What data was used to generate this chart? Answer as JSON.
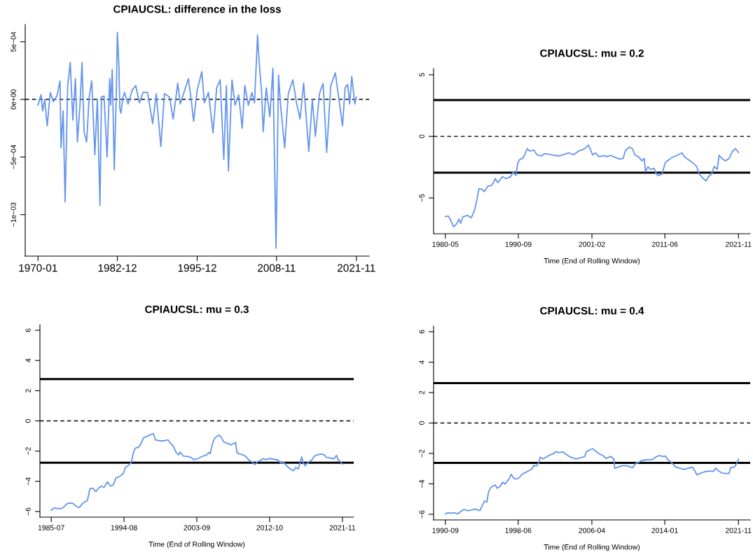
{
  "chart_data": [
    {
      "type": "line",
      "title": "CPIAUCSL: difference in the loss",
      "x": [
        "1970-01",
        "1970-07",
        "1970-10",
        "1971-02",
        "1971-07",
        "1972-01",
        "1972-07",
        "1973-02",
        "1973-08",
        "1973-10",
        "1974-02",
        "1974-06",
        "1974-11",
        "1975-04",
        "1975-09",
        "1976-02",
        "1976-06",
        "1976-11",
        "1977-03",
        "1977-07",
        "1977-12",
        "1978-05",
        "1978-10",
        "1979-04",
        "1979-09",
        "1980-02",
        "1980-05",
        "1980-10",
        "1981-04",
        "1981-09",
        "1981-11",
        "1982-02",
        "1982-06",
        "1982-10",
        "1982-12",
        "1983-03",
        "1983-05",
        "1983-07",
        "1983-11",
        "1984-02",
        "1984-09",
        "1985-05",
        "1985-12",
        "1986-07",
        "1987-02",
        "1987-11",
        "1988-09",
        "1989-04",
        "1990-01",
        "1990-08",
        "1991-06",
        "1992-01",
        "1992-10",
        "1993-03",
        "1993-10",
        "1994-07",
        "1995-01",
        "1995-05",
        "1995-12",
        "1996-09",
        "1997-02",
        "1997-10",
        "1998-07",
        "1999-02",
        "1999-09",
        "2000-04",
        "2000-09",
        "2001-01",
        "2001-08",
        "2002-02",
        "2002-09",
        "2003-04",
        "2003-09",
        "2004-04",
        "2004-11",
        "2005-04",
        "2005-10",
        "2006-01",
        "2006-06",
        "2006-09",
        "2007-03",
        "2007-10",
        "2008-04",
        "2008-10",
        "2009-03",
        "2009-07",
        "2010-03",
        "2010-10",
        "2011-07",
        "2012-02",
        "2012-09",
        "2013-04",
        "2014-02",
        "2014-09",
        "2015-03",
        "2015-11",
        "2016-06",
        "2017-01",
        "2017-09",
        "2018-06",
        "2019-01",
        "2019-08",
        "2020-01",
        "2020-06",
        "2020-10",
        "2021-02",
        "2021-08",
        "2021-11"
      ],
      "series": [
        {
          "color": "#6495ed",
          "values": [
            -5e-05,
            4e-05,
            -0.0001,
            0,
            -0.00023,
            6e-05,
            -2e-05,
            3e-05,
            0.00016,
            -0.00042,
            -0.0001,
            -0.00089,
            0.00012,
            0.00032,
            -0.00018,
            0.00018,
            -0.00037,
            -5e-05,
            0.00032,
            -0.00028,
            -0.00037,
            2e-05,
            0.00016,
            -0.00048,
            0,
            -0.00092,
            2e-05,
            3e-05,
            -0.0005,
            0.00018,
            -5e-05,
            0.00026,
            -0.00061,
            5e-05,
            0.00058,
            0.00031,
            -8e-05,
            -0.00012,
            2e-05,
            6e-05,
            -4e-05,
            8e-05,
            0.00012,
            -3e-05,
            6e-05,
            6e-05,
            -0.00021,
            5e-05,
            -0.00041,
            5e-05,
            2e-05,
            -0.00017,
            0.00014,
            -4e-05,
            6e-05,
            0.00018,
            -3e-05,
            -0.00019,
            8e-05,
            0.00024,
            -3e-05,
            6e-05,
            -0.00029,
            0.0001,
            0.00017,
            -0.00052,
            0.00012,
            -0.00062,
            0.00017,
            -5e-05,
            4e-05,
            -0.00025,
            0.00012,
            -5e-05,
            6e-05,
            -3e-05,
            0.00056,
            0.00033,
            5e-05,
            -0.00028,
            0.0001,
            -0.00015,
            0.00027,
            -0.00129,
            0.00021,
            -5e-05,
            -0.00042,
            5e-05,
            0.00017,
            -3e-05,
            -0.00017,
            0.00014,
            -0.00045,
            0,
            -0.00032,
            5e-05,
            0.00014,
            -0.00046,
            0.00012,
            0.00023,
            0,
            -0.00023,
            0.0001,
            0.00013,
            -4e-05,
            0.0002,
            -4e-05,
            2e-05
          ]
        }
      ],
      "xlim": [
        "1967-12",
        "2023-12"
      ],
      "ylim": [
        -0.00136,
        0.00065
      ],
      "xticks": [
        "1970-01",
        "1982-12",
        "1995-12",
        "2008-11",
        "2021-11"
      ],
      "yticks": [
        {
          "value": -0.001,
          "label": "−1e−03"
        },
        {
          "value": -0.0005,
          "label": "−5e−04"
        },
        {
          "value": 0,
          "label": "0e+00"
        },
        {
          "value": 0.0005,
          "label": "5e−04"
        }
      ],
      "ref_lines": [
        {
          "axis": "y",
          "value": 0,
          "color": "#000000",
          "line_style": "dashed"
        }
      ]
    },
    {
      "type": "line",
      "title": "CPIAUCSL: mu = 0.2",
      "xlabel": "Time (End of Rolling Window)",
      "x": [
        "1980-05",
        "1980-10",
        "1981-02",
        "1981-07",
        "1981-12",
        "1982-04",
        "1982-07",
        "1982-11",
        "1983-07",
        "1984-01",
        "1984-07",
        "1984-11",
        "1985-02",
        "1985-07",
        "1985-11",
        "1986-05",
        "1986-12",
        "1987-06",
        "1987-10",
        "1988-06",
        "1988-12",
        "1989-08",
        "1989-12",
        "1990-05",
        "1990-08",
        "1990-11",
        "1991-04",
        "1991-07",
        "1991-12",
        "1992-05",
        "1992-11",
        "1993-05",
        "1993-12",
        "1994-06",
        "1995-02",
        "1995-10",
        "1996-06",
        "1997-03",
        "1997-11",
        "1998-07",
        "1999-03",
        "1999-11",
        "2000-04",
        "2000-08",
        "2000-12",
        "2001-03",
        "2001-08",
        "2002-02",
        "2002-10",
        "2003-04",
        "2003-10",
        "2004-07",
        "2005-01",
        "2005-07",
        "2005-11",
        "2006-06",
        "2006-11",
        "2007-03",
        "2007-10",
        "2008-03",
        "2008-07",
        "2008-09",
        "2009-01",
        "2009-06",
        "2009-12",
        "2010-02",
        "2010-06",
        "2011-01",
        "2011-07",
        "2012-01",
        "2012-07",
        "2013-03",
        "2013-11",
        "2014-04",
        "2014-10",
        "2015-04",
        "2015-12",
        "2016-04",
        "2016-10",
        "2017-04",
        "2017-08",
        "2018-01",
        "2018-06",
        "2018-11",
        "2019-02",
        "2019-07",
        "2020-01",
        "2020-07",
        "2021-01",
        "2021-06",
        "2021-11"
      ],
      "series": [
        {
          "color": "#6495ed",
          "values": [
            -6.52,
            -6.46,
            -6.81,
            -7.34,
            -7.11,
            -6.71,
            -7.05,
            -6.52,
            -6.42,
            -6.61,
            -5.93,
            -5.04,
            -4.25,
            -4.29,
            -4.49,
            -4.06,
            -3.96,
            -3.43,
            -3.76,
            -3.27,
            -3.43,
            -3.27,
            -2.91,
            -3.17,
            -2.19,
            -1.89,
            -1.79,
            -1.59,
            -1.0,
            -1.2,
            -1.1,
            -1.5,
            -1.59,
            -1.4,
            -1.46,
            -1.54,
            -1.59,
            -1.46,
            -1.34,
            -1.5,
            -1.2,
            -1.06,
            -0.91,
            -0.71,
            -1.1,
            -1.5,
            -1.34,
            -1.65,
            -1.56,
            -1.65,
            -1.54,
            -1.73,
            -1.85,
            -1.79,
            -1.14,
            -0.87,
            -1.0,
            -1.5,
            -1.69,
            -1.99,
            -1.79,
            -2.87,
            -2.48,
            -2.68,
            -2.6,
            -2.91,
            -3.19,
            -3.07,
            -2.09,
            -1.89,
            -1.69,
            -1.54,
            -1.34,
            -1.69,
            -1.89,
            -2.09,
            -2.44,
            -3.03,
            -3.37,
            -3.62,
            -3.27,
            -3.07,
            -2.44,
            -2.68,
            -1.54,
            -1.79,
            -1.99,
            -1.79,
            -1.2,
            -1.0,
            -1.3
          ]
        }
      ],
      "xlim": [
        "1978-09",
        "2023-07"
      ],
      "ylim": [
        -7.9,
        5.5
      ],
      "xticks": [
        "1980-05",
        "1990-09",
        "2001-02",
        "2011-06",
        "2021-11"
      ],
      "yticks": [
        -5,
        0,
        5
      ],
      "ref_lines": [
        {
          "axis": "y",
          "value": 2.95,
          "color": "#000000",
          "line_style": "solid"
        },
        {
          "axis": "y",
          "value": 0,
          "color": "#000000",
          "line_style": "dashed"
        },
        {
          "axis": "y",
          "value": -2.95,
          "color": "#000000",
          "line_style": "solid"
        }
      ]
    },
    {
      "type": "line",
      "title": "CPIAUCSL: mu = 0.3",
      "xlabel": "Time (End of Rolling Window)",
      "x": [
        "1985-07",
        "1985-11",
        "1986-05",
        "1986-10",
        "1987-02",
        "1987-07",
        "1987-11",
        "1988-04",
        "1988-09",
        "1989-01",
        "1989-05",
        "1989-09",
        "1990-01",
        "1990-05",
        "1990-09",
        "1991-02",
        "1991-06",
        "1991-10",
        "1992-02",
        "1992-07",
        "1992-12",
        "1993-04",
        "1993-08",
        "1994-01",
        "1994-07",
        "1994-10",
        "1995-04",
        "1995-07",
        "1995-10",
        "1996-01",
        "1996-06",
        "1996-10",
        "1997-01",
        "1997-05",
        "1997-09",
        "1998-01",
        "1998-04",
        "1998-07",
        "1999-01",
        "1999-08",
        "2000-02",
        "2000-05",
        "2000-10",
        "2001-02",
        "2001-06",
        "2001-08",
        "2002-01",
        "2002-07",
        "2002-12",
        "2003-05",
        "2003-11",
        "2004-06",
        "2004-11",
        "2005-03",
        "2005-05",
        "2005-09",
        "2005-12",
        "2006-06",
        "2006-09",
        "2007-01",
        "2007-06",
        "2007-12",
        "2008-03",
        "2008-07",
        "2008-09",
        "2008-12",
        "2009-06",
        "2009-11",
        "2010-03",
        "2010-08",
        "2010-12",
        "2011-04",
        "2011-09",
        "2012-01",
        "2012-04",
        "2012-11",
        "2013-07",
        "2013-10",
        "2014-03",
        "2014-07",
        "2015-01",
        "2015-06",
        "2015-10",
        "2016-01",
        "2016-05",
        "2016-10",
        "2016-12",
        "2017-03",
        "2017-08",
        "2018-01",
        "2018-05",
        "2018-08",
        "2019-02",
        "2019-07",
        "2019-11",
        "2020-03",
        "2020-08",
        "2020-11",
        "2021-02",
        "2021-05",
        "2021-08",
        "2021-11"
      ],
      "series": [
        {
          "color": "#6495ed",
          "values": [
            -5.92,
            -5.76,
            -5.81,
            -5.81,
            -5.68,
            -5.47,
            -5.44,
            -5.47,
            -5.68,
            -5.73,
            -5.52,
            -5.36,
            -5.28,
            -4.48,
            -4.45,
            -4.68,
            -4.45,
            -4.32,
            -4.4,
            -4.04,
            -4.32,
            -4.24,
            -3.77,
            -3.69,
            -3.49,
            -3.08,
            -2.89,
            -2.73,
            -2.09,
            -1.8,
            -1.74,
            -1.45,
            -1.13,
            -1.05,
            -0.97,
            -0.89,
            -0.85,
            -1.26,
            -1.32,
            -1.32,
            -1.26,
            -1.45,
            -1.69,
            -2.09,
            -2.25,
            -2.06,
            -2.33,
            -2.36,
            -2.41,
            -2.57,
            -2.49,
            -2.33,
            -2.28,
            -2.09,
            -2.17,
            -1.42,
            -1.13,
            -0.94,
            -1.05,
            -1.37,
            -1.48,
            -1.58,
            -1.53,
            -1.42,
            -2.09,
            -2.17,
            -2.25,
            -2.38,
            -2.6,
            -2.73,
            -2.89,
            -2.7,
            -2.6,
            -2.49,
            -2.57,
            -2.49,
            -2.57,
            -2.57,
            -2.81,
            -2.73,
            -3.05,
            -3.21,
            -3.3,
            -3.08,
            -3.18,
            -2.38,
            -2.73,
            -2.97,
            -2.73,
            -2.6,
            -2.33,
            -2.28,
            -2.2,
            -2.22,
            -2.41,
            -2.44,
            -2.49,
            -2.49,
            -2.28,
            -2.6,
            -2.7,
            -2.86
          ]
        }
      ],
      "xlim": [
        "1984-02",
        "2023-04"
      ],
      "ylim": [
        -6.37,
        6.37
      ],
      "xticks": [
        "1985-07",
        "1994-08",
        "2003-09",
        "2012-10",
        "2021-11"
      ],
      "yticks": [
        -6,
        -4,
        -2,
        0,
        2,
        4,
        6
      ],
      "ref_lines": [
        {
          "axis": "y",
          "value": 2.77,
          "color": "#000000",
          "line_style": "solid"
        },
        {
          "axis": "y",
          "value": 0,
          "color": "#000000",
          "line_style": "dashed"
        },
        {
          "axis": "y",
          "value": -2.77,
          "color": "#000000",
          "line_style": "solid"
        }
      ]
    },
    {
      "type": "line",
      "title": "CPIAUCSL: mu = 0.4",
      "xlabel": "Time (End of Rolling Window)",
      "x": [
        "1990-09",
        "1991-01",
        "1991-04",
        "1991-08",
        "1992-01",
        "1992-04",
        "1992-09",
        "1993-01",
        "1993-06",
        "1993-11",
        "1994-02",
        "1994-05",
        "1994-08",
        "1994-11",
        "1995-02",
        "1995-04",
        "1995-07",
        "1995-10",
        "1996-01",
        "1996-03",
        "1996-07",
        "1996-10",
        "1997-01",
        "1997-04",
        "1997-07",
        "1997-09",
        "1997-12",
        "1998-03",
        "1998-07",
        "1998-11",
        "1999-03",
        "1999-08",
        "1999-11",
        "2000-02",
        "2000-05",
        "2000-08",
        "2000-10",
        "2001-02",
        "2001-07",
        "2001-11",
        "2002-03",
        "2002-06",
        "2002-10",
        "2003-03",
        "2003-06",
        "2003-11",
        "2004-03",
        "2004-08",
        "2005-02",
        "2005-07",
        "2005-09",
        "2006-01",
        "2006-05",
        "2006-08",
        "2007-01",
        "2007-06",
        "2007-10",
        "2008-04",
        "2008-08",
        "2008-09",
        "2009-02",
        "2009-06",
        "2010-01",
        "2010-05",
        "2010-08",
        "2010-12",
        "2011-04",
        "2011-08",
        "2012-03",
        "2012-09",
        "2013-01",
        "2013-06",
        "2013-11",
        "2014-02",
        "2014-05",
        "2014-09",
        "2015-03",
        "2015-08",
        "2016-02",
        "2016-07",
        "2016-12",
        "2017-03",
        "2017-06",
        "2017-10",
        "2018-03",
        "2018-09",
        "2019-03",
        "2019-06",
        "2019-10",
        "2020-02",
        "2020-07",
        "2020-11",
        "2021-01",
        "2021-06",
        "2021-09",
        "2021-11"
      ],
      "series": [
        {
          "color": "#6495ed",
          "values": [
            -5.97,
            -5.89,
            -5.94,
            -5.89,
            -5.97,
            -5.84,
            -5.68,
            -5.76,
            -5.73,
            -5.65,
            -5.71,
            -5.76,
            -5.44,
            -5.12,
            -5.2,
            -4.56,
            -4.24,
            -4.13,
            -4.08,
            -4.29,
            -4.16,
            -3.89,
            -4.01,
            -3.85,
            -3.61,
            -3.37,
            -3.61,
            -3.69,
            -3.61,
            -3.37,
            -3.26,
            -3.13,
            -3.05,
            -2.78,
            -2.84,
            -2.62,
            -2.25,
            -2.36,
            -2.2,
            -2.09,
            -2.01,
            -1.88,
            -1.95,
            -1.9,
            -2.01,
            -2.2,
            -2.28,
            -2.36,
            -2.28,
            -2.2,
            -1.88,
            -1.77,
            -1.69,
            -1.82,
            -2.01,
            -2.14,
            -2.33,
            -2.2,
            -2.36,
            -2.97,
            -2.89,
            -2.81,
            -2.81,
            -2.89,
            -2.94,
            -2.65,
            -2.57,
            -2.46,
            -2.41,
            -2.41,
            -2.25,
            -2.14,
            -2.2,
            -2.17,
            -2.41,
            -2.57,
            -2.89,
            -2.97,
            -3.05,
            -2.97,
            -2.89,
            -3.1,
            -3.41,
            -3.32,
            -3.22,
            -3.16,
            -3.18,
            -2.97,
            -3.16,
            -3.29,
            -3.32,
            -3.32,
            -2.94,
            -2.89,
            -2.65,
            -2.38
          ]
        }
      ],
      "xlim": [
        "1989-06",
        "2023-02"
      ],
      "ylim": [
        -6.37,
        6.37
      ],
      "xticks": [
        "1990-09",
        "1998-06",
        "2006-04",
        "2014-01",
        "2021-11"
      ],
      "yticks": [
        -6,
        -4,
        -2,
        0,
        2,
        4,
        6
      ],
      "ref_lines": [
        {
          "axis": "y",
          "value": 2.62,
          "color": "#000000",
          "line_style": "solid"
        },
        {
          "axis": "y",
          "value": 0,
          "color": "#000000",
          "line_style": "dashed"
        },
        {
          "axis": "y",
          "value": -2.62,
          "color": "#000000",
          "line_style": "solid"
        }
      ]
    }
  ]
}
